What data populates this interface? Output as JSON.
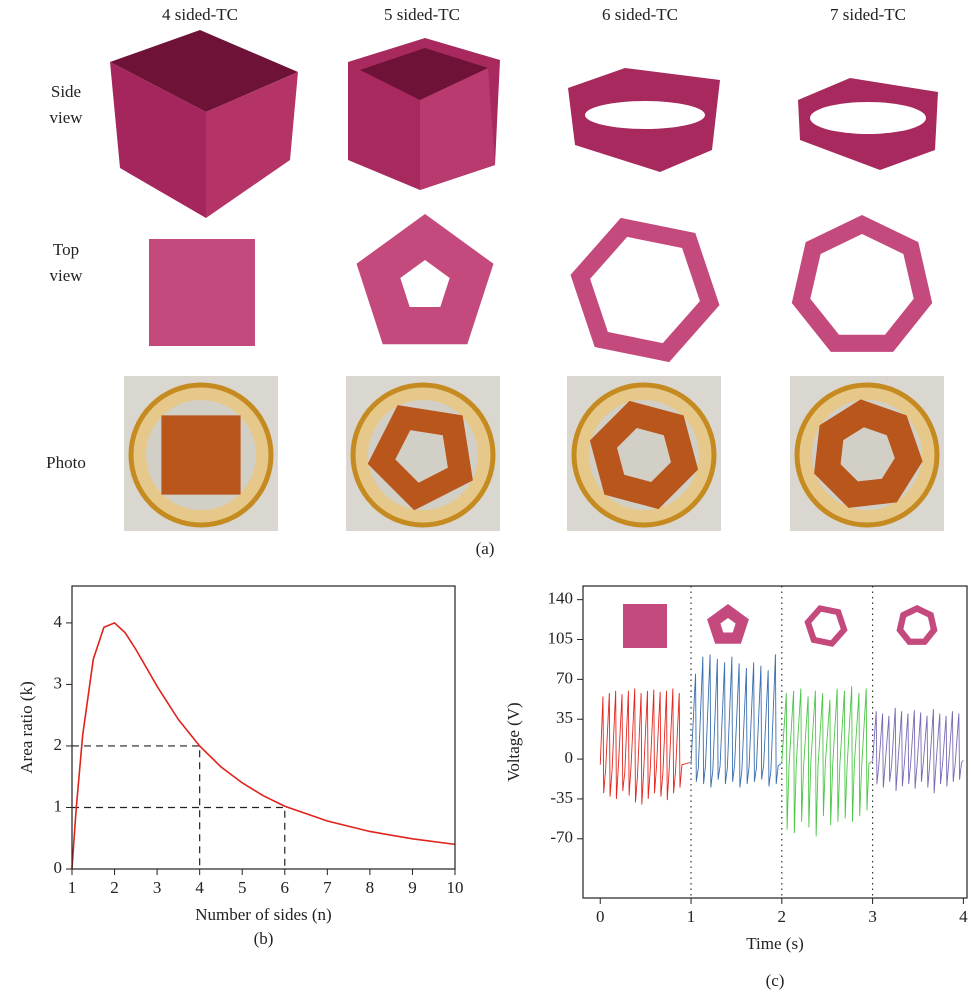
{
  "figure_a": {
    "columns": [
      "4 sided-TC",
      "5 sided-TC",
      "6 sided-TC",
      "7 sided-TC"
    ],
    "rows": [
      "Side view",
      "Top view",
      "Photo"
    ],
    "caption": "(a)"
  },
  "chart_data": [
    {
      "type": "line",
      "caption": "(b)",
      "xlabel": "Number of sides (n)",
      "ylabel": "Area ratio (k)",
      "color": "#e0231b",
      "x": [
        1,
        1.05,
        1.1,
        1.25,
        1.5,
        1.75,
        2,
        2.25,
        2.5,
        3,
        3.5,
        4,
        4.5,
        5,
        5.5,
        6,
        7,
        8,
        9,
        10
      ],
      "values": [
        0,
        0.51,
        0.99,
        2.17,
        3.41,
        3.93,
        4.0,
        3.84,
        3.57,
        2.97,
        2.43,
        2.0,
        1.66,
        1.4,
        1.19,
        1.02,
        0.78,
        0.61,
        0.49,
        0.4
      ],
      "reference_points": [
        {
          "x": 4,
          "y": 2
        },
        {
          "x": 6,
          "y": 1
        }
      ],
      "xlim": [
        1,
        10
      ],
      "ylim": [
        0,
        4.6
      ],
      "xticks": [
        1,
        2,
        3,
        4,
        5,
        6,
        7,
        8,
        9,
        10
      ],
      "yticks": [
        0,
        1,
        2,
        3,
        4
      ]
    },
    {
      "type": "line",
      "caption": "(c)",
      "xlabel": "Time (s)",
      "ylabel": "Voltage (V)",
      "dividers": [
        1,
        2,
        3
      ],
      "series": [
        {
          "color": "#e3271f",
          "x": [
            0,
            0.03,
            0.038,
            0.06,
            0.1,
            0.108,
            0.13,
            0.17,
            0.178,
            0.2,
            0.24,
            0.248,
            0.27,
            0.31,
            0.318,
            0.34,
            0.38,
            0.388,
            0.41,
            0.45,
            0.458,
            0.48,
            0.52,
            0.528,
            0.55,
            0.59,
            0.598,
            0.62,
            0.66,
            0.668,
            0.69,
            0.73,
            0.738,
            0.76,
            0.8,
            0.808,
            0.83,
            0.87,
            0.878,
            0.9,
            0.99
          ],
          "values": [
            -5,
            55,
            -30,
            -8,
            58,
            -33,
            -10,
            60,
            -35,
            -6,
            57,
            -28,
            -12,
            60,
            -32,
            -5,
            62,
            -38,
            -15,
            58,
            -40,
            -8,
            60,
            -35,
            -10,
            61,
            -30,
            -6,
            59,
            -33,
            -12,
            60,
            -36,
            -8,
            62,
            -30,
            -10,
            58,
            -25,
            -5,
            -3
          ]
        },
        {
          "color": "#3b6fae",
          "x": [
            1.0,
            1.05,
            1.058,
            1.08,
            1.13,
            1.138,
            1.16,
            1.21,
            1.218,
            1.24,
            1.29,
            1.298,
            1.32,
            1.37,
            1.378,
            1.4,
            1.45,
            1.458,
            1.48,
            1.53,
            1.538,
            1.56,
            1.61,
            1.618,
            1.64,
            1.69,
            1.698,
            1.72,
            1.77,
            1.778,
            1.8,
            1.85,
            1.858,
            1.88,
            1.93,
            1.938,
            1.96,
            1.99
          ],
          "values": [
            -5,
            75,
            -20,
            -8,
            90,
            -22,
            -5,
            92,
            -25,
            -10,
            88,
            -18,
            -6,
            85,
            -22,
            -8,
            90,
            -20,
            -5,
            84,
            -25,
            -10,
            80,
            -22,
            -6,
            85,
            -20,
            -8,
            82,
            -18,
            -5,
            78,
            -24,
            -10,
            92,
            -22,
            -6,
            -4
          ]
        },
        {
          "color": "#4fc64a",
          "x": [
            2.0,
            2.05,
            2.058,
            2.08,
            2.13,
            2.138,
            2.16,
            2.21,
            2.218,
            2.24,
            2.29,
            2.298,
            2.32,
            2.37,
            2.378,
            2.4,
            2.45,
            2.458,
            2.48,
            2.53,
            2.538,
            2.56,
            2.61,
            2.618,
            2.64,
            2.69,
            2.698,
            2.72,
            2.77,
            2.778,
            2.8,
            2.85,
            2.858,
            2.88,
            2.93,
            2.938,
            2.96,
            2.99
          ],
          "values": [
            -3,
            58,
            -62,
            -5,
            60,
            -65,
            -3,
            62,
            -55,
            -6,
            55,
            -60,
            -2,
            60,
            -68,
            -5,
            58,
            -50,
            -3,
            52,
            -58,
            -6,
            62,
            -55,
            -4,
            60,
            -52,
            -5,
            64,
            -55,
            -3,
            58,
            -50,
            -6,
            62,
            -45,
            -4,
            -2
          ]
        },
        {
          "color": "#7a6ab4",
          "x": [
            3.0,
            3.04,
            3.048,
            3.07,
            3.11,
            3.118,
            3.14,
            3.18,
            3.188,
            3.21,
            3.25,
            3.258,
            3.28,
            3.32,
            3.328,
            3.35,
            3.39,
            3.398,
            3.42,
            3.46,
            3.468,
            3.49,
            3.53,
            3.538,
            3.56,
            3.6,
            3.608,
            3.63,
            3.67,
            3.678,
            3.7,
            3.74,
            3.748,
            3.77,
            3.81,
            3.818,
            3.84,
            3.88,
            3.888,
            3.91,
            3.95,
            3.958,
            3.98,
            4.0
          ],
          "values": [
            -2,
            42,
            -22,
            -4,
            40,
            -25,
            -3,
            38,
            -20,
            -5,
            45,
            -28,
            -2,
            42,
            -24,
            -4,
            40,
            -22,
            -3,
            43,
            -26,
            -5,
            41,
            -20,
            -2,
            38,
            -25,
            -4,
            44,
            -30,
            -3,
            40,
            -22,
            -5,
            38,
            -24,
            -2,
            42,
            -20,
            -4,
            40,
            -18,
            -3,
            -1
          ]
        }
      ],
      "xlim": [
        -0.19,
        4.04
      ],
      "ylim": [
        -122,
        152
      ],
      "xticks": [
        0,
        1,
        2,
        3,
        4
      ],
      "yticks": [
        -70,
        -35,
        0,
        35,
        70,
        105,
        140
      ]
    }
  ]
}
